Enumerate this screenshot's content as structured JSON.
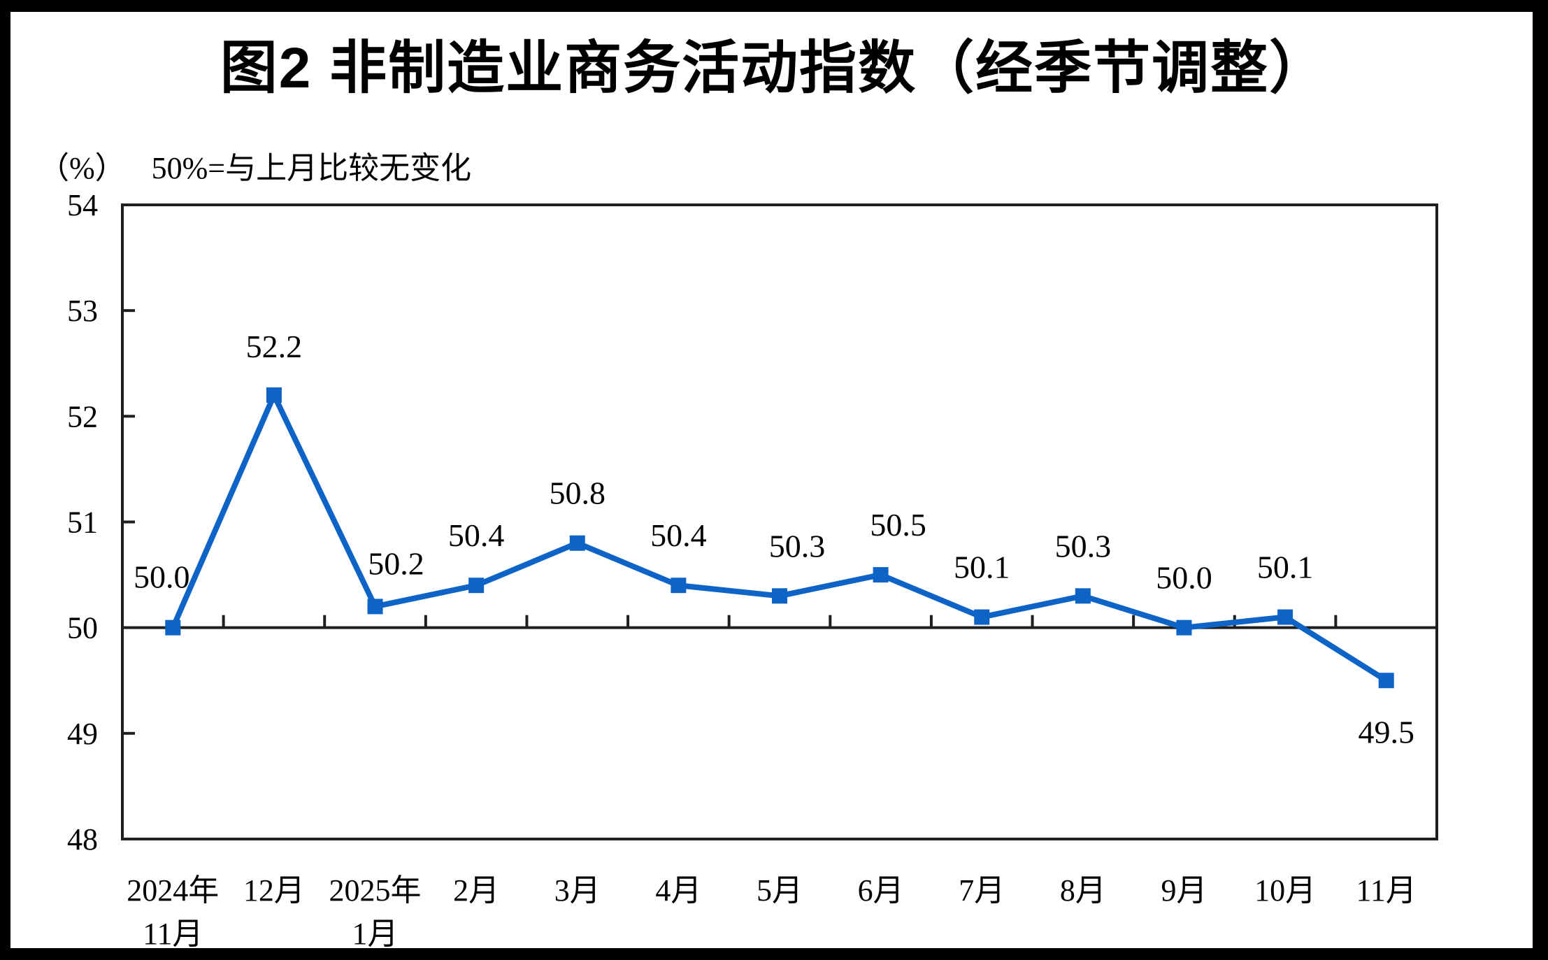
{
  "frame": {
    "border_color": "#000000",
    "canvas_background": "#ffffff"
  },
  "chart_data": {
    "type": "line",
    "title": "图2 非制造业商务活动指数（经季节调整）",
    "unit_label": "（%）",
    "note": "50%=与上月比较无变化",
    "categories": [
      [
        "2024年",
        "11月"
      ],
      [
        "12月"
      ],
      [
        "2025年",
        "1月"
      ],
      [
        "2月"
      ],
      [
        "3月"
      ],
      [
        "4月"
      ],
      [
        "5月"
      ],
      [
        "6月"
      ],
      [
        "7月"
      ],
      [
        "8月"
      ],
      [
        "9月"
      ],
      [
        "10月"
      ],
      [
        "11月"
      ]
    ],
    "values": [
      50.0,
      52.2,
      50.2,
      50.4,
      50.8,
      50.4,
      50.3,
      50.5,
      50.1,
      50.3,
      50.0,
      50.1,
      49.5
    ],
    "data_labels": [
      "50.0",
      "52.2",
      "50.2",
      "50.4",
      "50.8",
      "50.4",
      "50.3",
      "50.5",
      "50.1",
      "50.3",
      "50.0",
      "50.1",
      "49.5"
    ],
    "ylim": [
      48,
      54
    ],
    "yticks": [
      48,
      49,
      50,
      51,
      52,
      53,
      54
    ],
    "reference_line": 50,
    "grid": "off",
    "legend": "none",
    "series_color": "#0E63C6",
    "axis_color": "#1f1f1f",
    "text_color": "#000000"
  }
}
